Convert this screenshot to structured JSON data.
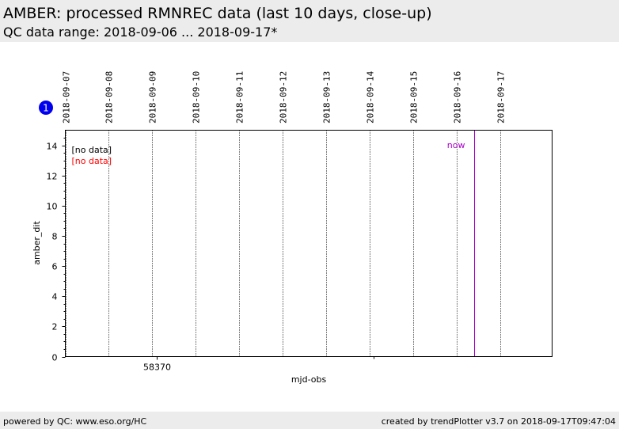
{
  "header": {
    "title": "AMBER: processed RMNREC data (last 10 days, close-up)",
    "subtitle": "QC data range: 2018-09-06 ... 2018-09-17*"
  },
  "badge": {
    "label": "1",
    "color": "#0000ee"
  },
  "footer": {
    "left": "powered by QC: www.eso.org/HC",
    "right": "created by trendPlotter v3.7 on 2018-09-17T09:47:04"
  },
  "chart_data": {
    "type": "scatter",
    "xlabel": "mjd-obs",
    "ylabel": "amber_dit",
    "xlim": [
      58368.0,
      58379.2
    ],
    "ylim": [
      0,
      15
    ],
    "x_ticks": [
      {
        "value": 58370,
        "label": "58370"
      }
    ],
    "y_ticks": [
      0,
      2,
      4,
      6,
      8,
      10,
      12,
      14
    ],
    "date_lines": [
      {
        "value": 58368.0,
        "label": "2018-09-07"
      },
      {
        "value": 58369.0,
        "label": "2018-09-08"
      },
      {
        "value": 58370.0,
        "label": "2018-09-09"
      },
      {
        "value": 58371.0,
        "label": "2018-09-10"
      },
      {
        "value": 58372.0,
        "label": "2018-09-11"
      },
      {
        "value": 58373.0,
        "label": "2018-09-12"
      },
      {
        "value": 58374.0,
        "label": "2018-09-13"
      },
      {
        "value": 58375.0,
        "label": "2018-09-14"
      },
      {
        "value": 58376.0,
        "label": "2018-09-15"
      },
      {
        "value": 58377.0,
        "label": "2018-09-16"
      },
      {
        "value": 58378.0,
        "label": "2018-09-17"
      }
    ],
    "now": {
      "value": 58377.4,
      "label": "now",
      "color": "#aa00cc"
    },
    "series": [
      {
        "label": "[no data]",
        "color": "#000000",
        "values": []
      },
      {
        "label": "[no data]",
        "color": "#ff0000",
        "values": []
      }
    ],
    "grid": false
  }
}
